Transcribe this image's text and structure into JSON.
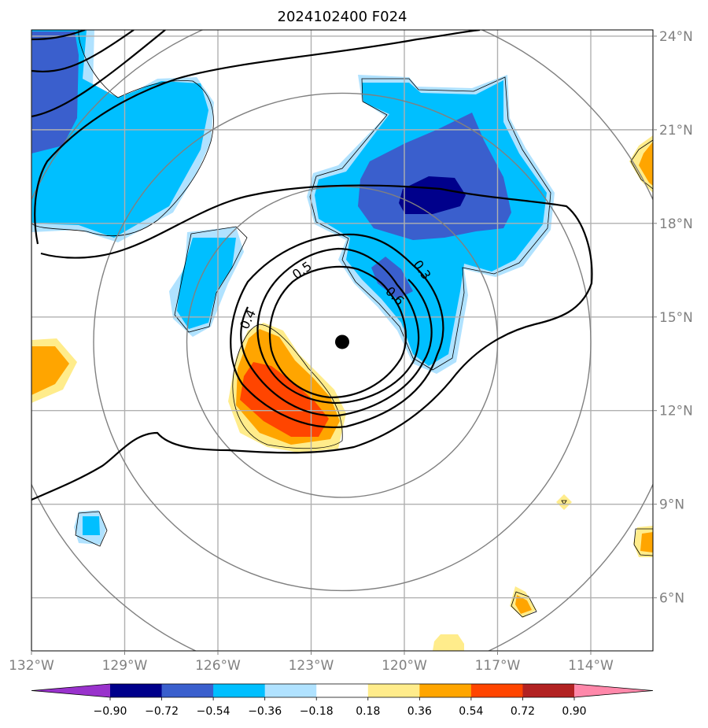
{
  "chart_data": {
    "type": "contour",
    "title": "2024102400 F024",
    "x_ticks": [
      "132°W",
      "129°W",
      "126°W",
      "123°W",
      "120°W",
      "117°W",
      "114°W"
    ],
    "y_ticks": [
      "24°N",
      "21°N",
      "18°N",
      "15°N",
      "12°N",
      "9°N",
      "6°N"
    ],
    "lon_range": [
      -132,
      -112
    ],
    "lat_range": [
      4.3,
      24.2
    ],
    "grid": true,
    "storm_center": {
      "lon": -122.0,
      "lat": 14.2
    },
    "range_rings_deg": [
      5,
      8,
      11
    ],
    "contour_labels": [
      "0.3",
      "0.4",
      "0.5",
      "0.6"
    ],
    "colorbar": {
      "ticks": [
        "−0.90",
        "−0.72",
        "−0.54",
        "−0.36",
        "−0.18",
        "0.18",
        "0.36",
        "0.54",
        "0.72",
        "0.90"
      ],
      "colors": [
        "#9932cc",
        "#00008b",
        "#3a5fcd",
        "#00bfff",
        "#b0e2ff",
        "#ffffff",
        "#ffec8b",
        "#ffa500",
        "#ff4500",
        "#b22222",
        "#ff88aa"
      ],
      "extend": "both"
    }
  }
}
